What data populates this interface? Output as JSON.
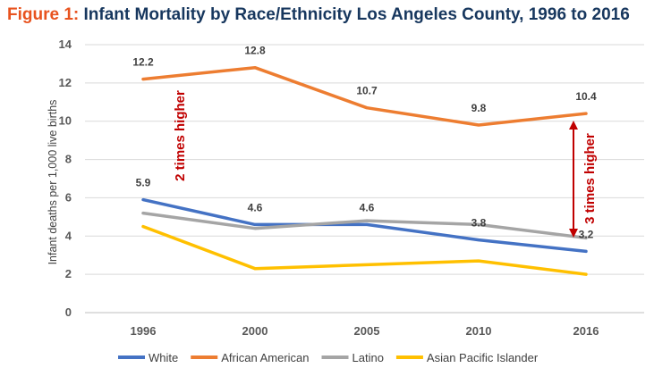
{
  "title": {
    "prefix": "Figure 1:",
    "text": "Infant Mortality by Race/Ethnicity Los Angeles County, 1996 to 2016"
  },
  "chart_data": {
    "type": "line",
    "title": "Infant Mortality by Race/Ethnicity Los Angeles County, 1996 to 2016",
    "xlabel": "",
    "ylabel": "Infant deaths per 1,000 live births",
    "categories": [
      "1996",
      "2000",
      "2005",
      "2010",
      "2016"
    ],
    "ylim": [
      0,
      14
    ],
    "yticks": [
      0,
      2,
      4,
      6,
      8,
      10,
      12,
      14
    ],
    "grid": true,
    "legend_position": "bottom",
    "series": [
      {
        "name": "White",
        "color": "#4472c4",
        "values": [
          5.9,
          4.6,
          4.6,
          3.8,
          3.2
        ]
      },
      {
        "name": "African American",
        "color": "#ed7d31",
        "values": [
          12.2,
          12.8,
          10.7,
          9.8,
          10.4
        ]
      },
      {
        "name": "Latino",
        "color": "#a5a5a5",
        "values": [
          5.2,
          4.4,
          4.8,
          4.6,
          3.9
        ]
      },
      {
        "name": "Asian Pacific Islander",
        "color": "#ffc000",
        "values": [
          4.5,
          2.3,
          2.5,
          2.7,
          2.0
        ]
      }
    ],
    "data_labels": [
      {
        "series": "African American",
        "text": [
          "12.2",
          "12.8",
          "10.7",
          "9.8",
          "10.4"
        ]
      },
      {
        "series": "White",
        "text": [
          "5.9",
          "4.6",
          "4.6",
          "3.8",
          "3.2"
        ]
      }
    ],
    "annotations": [
      {
        "text": "2 times higher",
        "color": "#c00000"
      },
      {
        "text": "3 times higher",
        "color": "#c00000"
      }
    ]
  }
}
